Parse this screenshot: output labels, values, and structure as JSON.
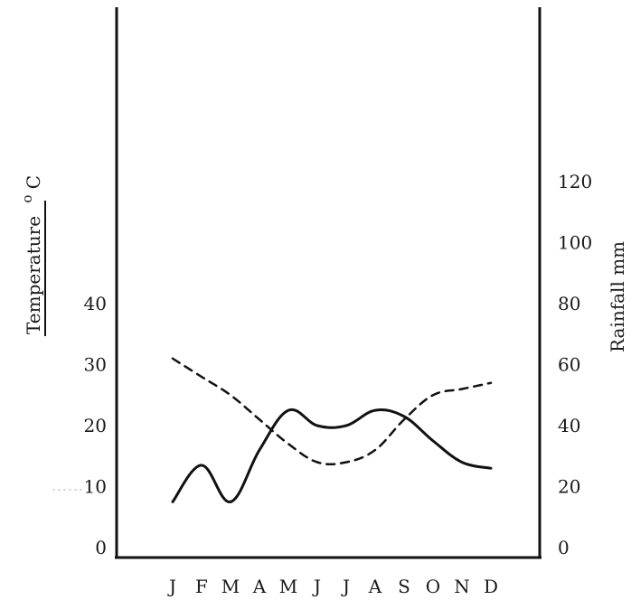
{
  "chart_data": {
    "type": "line",
    "title": "",
    "categories": [
      "J",
      "F",
      "M",
      "A",
      "M",
      "J",
      "J",
      "A",
      "S",
      "O",
      "N",
      "D"
    ],
    "left_axis": {
      "label_main": "Temperature",
      "label_unit_sup": "o",
      "label_unit": "C",
      "ticks": [
        "0",
        "10",
        "20",
        "30",
        "40"
      ],
      "range": [
        0,
        40
      ]
    },
    "right_axis": {
      "label": "Rainfall mm",
      "ticks": [
        "0",
        "20",
        "40",
        "60",
        "80",
        "100",
        "120"
      ],
      "range": [
        0,
        120
      ]
    },
    "series": [
      {
        "style": "solid",
        "axis": "right",
        "values": [
          15,
          27,
          15,
          32,
          45,
          40,
          40,
          45,
          43,
          35,
          28,
          26
        ]
      },
      {
        "style": "dashed",
        "axis": "left",
        "values": [
          31,
          28,
          25,
          21,
          17,
          14,
          14,
          16,
          21,
          25,
          26,
          27
        ]
      }
    ],
    "grid": false,
    "legend": "none"
  }
}
